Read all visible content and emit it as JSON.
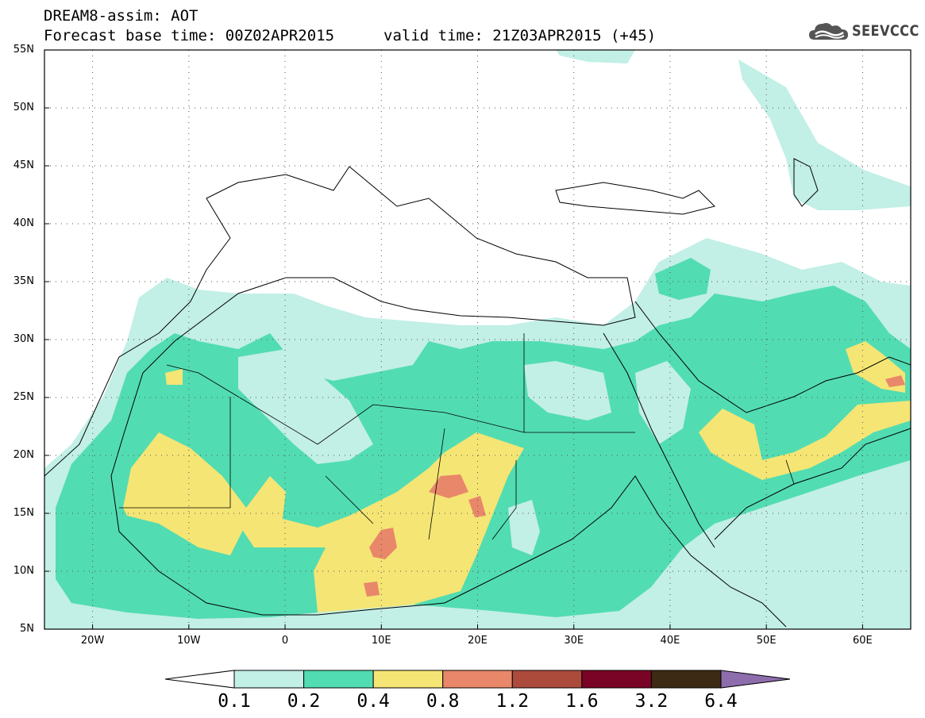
{
  "header": {
    "title_line1": "DREAM8-assim: AOT",
    "title_base": "Forecast base time: 00Z02APR2015",
    "title_valid": "valid time: 21Z03APR2015 (+45)",
    "logo_text": "SEEVCCC",
    "logo_icon": "cloud-icon"
  },
  "map": {
    "lon_range": [
      -25,
      65
    ],
    "lat_range": [
      5,
      55
    ],
    "lat_ticks": [
      "55N",
      "50N",
      "45N",
      "40N",
      "35N",
      "30N",
      "25N",
      "20N",
      "15N",
      "10N",
      "5N"
    ],
    "lon_ticks": [
      "20W",
      "10W",
      "0",
      "10E",
      "20E",
      "30E",
      "40E",
      "50E",
      "60E"
    ],
    "grid": "dotted",
    "field": "AOT"
  },
  "colorbar": {
    "labels": [
      "0.1",
      "0.2",
      "0.4",
      "0.8",
      "1.2",
      "1.6",
      "3.2",
      "6.4"
    ],
    "colors": [
      "#ffffff",
      "#c2efe6",
      "#52dcb2",
      "#f5e574",
      "#e8876a",
      "#ac4a3c",
      "#7a0425",
      "#3d2a15",
      "#8e6dad"
    ]
  }
}
